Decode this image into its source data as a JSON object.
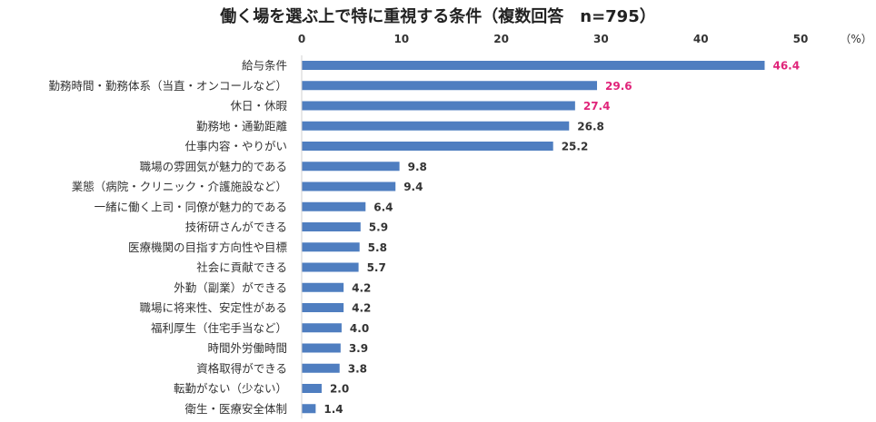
{
  "chart_data": {
    "type": "bar",
    "orientation": "horizontal",
    "title": "働く場を選ぶ上で特に重視する条件（複数回答　n=795）",
    "unit_label": "（%）",
    "xlim": [
      0,
      50
    ],
    "xticks": [
      0,
      10,
      20,
      30,
      40,
      50
    ],
    "grid": false,
    "bar_color": "#4f7ec0",
    "highlight_color": "#e0247a",
    "default_label_color": "#333333",
    "categories": [
      "給与条件",
      "勤務時間・勤務体系（当直・オンコールなど）",
      "休日・休暇",
      "勤務地・通勤距離",
      "仕事内容・やりがい",
      "職場の雰囲気が魅力的である",
      "業態（病院・クリニック・介護施設など）",
      "一緒に働く上司・同僚が魅力的である",
      "技術研さんができる",
      "医療機関の目指す方向性や目標",
      "社会に貢献できる",
      "外勤（副業）ができる",
      "職場に将来性、安定性がある",
      "福利厚生（住宅手当など）",
      "時間外労働時間",
      "資格取得ができる",
      "転勤がない（少ない）",
      "衛生・医療安全体制"
    ],
    "values": [
      46.4,
      29.6,
      27.4,
      26.8,
      25.2,
      9.8,
      9.4,
      6.4,
      5.9,
      5.8,
      5.7,
      4.2,
      4.2,
      4.0,
      3.9,
      3.8,
      2.0,
      1.4
    ],
    "value_labels": [
      "46.4",
      "29.6",
      "27.4",
      "26.8",
      "25.2",
      "9.8",
      "9.4",
      "6.4",
      "5.9",
      "5.8",
      "5.7",
      "4.2",
      "4.2",
      "4.0",
      "3.9",
      "3.8",
      "2.0",
      "1.4"
    ],
    "highlighted_indices": [
      0,
      1,
      2
    ]
  }
}
